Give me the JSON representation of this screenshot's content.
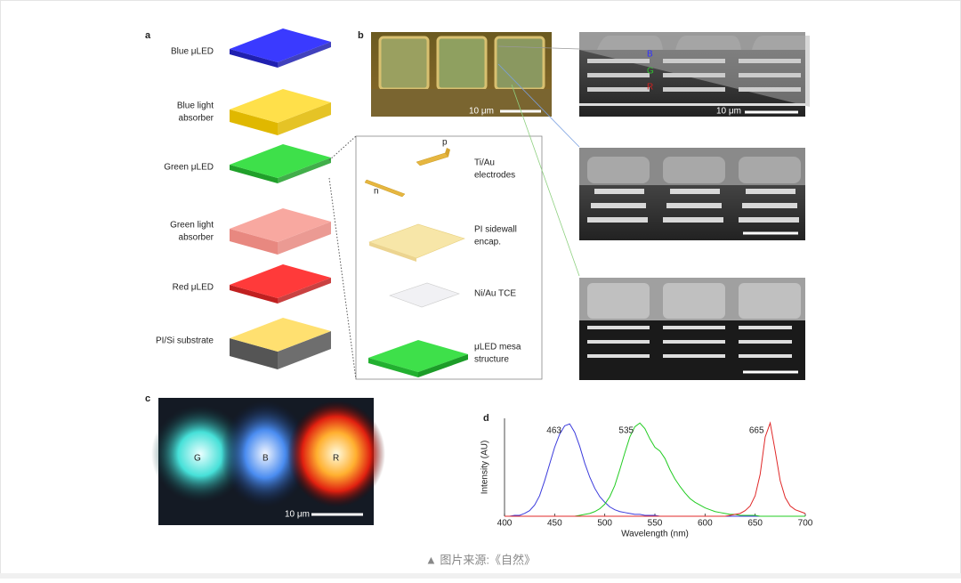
{
  "panel_a": {
    "label": "a",
    "layers": [
      {
        "lines": [
          "Blue μLED"
        ]
      },
      {
        "lines": [
          "Blue light",
          "absorber"
        ]
      },
      {
        "lines": [
          "Green μLED"
        ]
      },
      {
        "lines": [
          "Green light",
          "absorber"
        ]
      },
      {
        "lines": [
          "Red μLED"
        ]
      },
      {
        "lines": [
          "PI/Si substrate"
        ]
      }
    ],
    "inset": {
      "p": "p",
      "n": "n",
      "items": [
        {
          "lines": [
            "Ti/Au",
            "electrodes"
          ]
        },
        {
          "lines": [
            "PI sidewall",
            "encap."
          ]
        },
        {
          "lines": [
            "Ni/Au TCE"
          ]
        },
        {
          "lines": [
            "μLED mesa",
            "structure"
          ]
        }
      ]
    }
  },
  "panel_b": {
    "label": "b",
    "scale_labels": [
      "10 μm",
      "10 μm"
    ],
    "layer_labels": [
      "B",
      "G",
      "R"
    ]
  },
  "panel_c": {
    "label": "c",
    "pixel_labels": [
      "G",
      "B",
      "R"
    ],
    "scale_label": "10 μm"
  },
  "chart_data": {
    "type": "line",
    "label": "d",
    "x_label": "Wavelength (nm)",
    "y_label": "Intensity (AU)",
    "xlim": [
      400,
      700
    ],
    "xticks": [
      400,
      450,
      500,
      550,
      600,
      650,
      700
    ],
    "ylim": [
      0,
      1.05
    ],
    "x": [
      400,
      405,
      410,
      415,
      420,
      425,
      430,
      435,
      440,
      445,
      450,
      455,
      460,
      465,
      470,
      475,
      480,
      485,
      490,
      495,
      500,
      505,
      510,
      515,
      520,
      525,
      530,
      535,
      540,
      545,
      550,
      555,
      560,
      565,
      570,
      575,
      580,
      585,
      590,
      595,
      600,
      605,
      610,
      615,
      620,
      625,
      630,
      635,
      640,
      645,
      650,
      655,
      660,
      665,
      670,
      675,
      680,
      685,
      690,
      695,
      700
    ],
    "series": [
      {
        "color": "#3b3bdc",
        "values": [
          0,
          0,
          0.01,
          0.01,
          0.03,
          0.06,
          0.12,
          0.22,
          0.38,
          0.56,
          0.74,
          0.88,
          0.97,
          0.99,
          0.9,
          0.75,
          0.57,
          0.42,
          0.3,
          0.21,
          0.15,
          0.1,
          0.07,
          0.05,
          0.04,
          0.03,
          0.02,
          0.02,
          0.01,
          0.01,
          0.01,
          0,
          0,
          0,
          0,
          0,
          0,
          0,
          0,
          0,
          0,
          0,
          0,
          0,
          0,
          0,
          0,
          0,
          0,
          0,
          0,
          0,
          0,
          0,
          0,
          0,
          0,
          0,
          0,
          0,
          0
        ]
      },
      {
        "color": "#22cc22",
        "values": [
          0,
          0,
          0,
          0,
          0,
          0,
          0,
          0,
          0,
          0,
          0,
          0,
          0,
          0,
          0,
          0.01,
          0.02,
          0.03,
          0.05,
          0.08,
          0.13,
          0.21,
          0.33,
          0.5,
          0.68,
          0.85,
          0.96,
          1.0,
          0.94,
          0.83,
          0.74,
          0.7,
          0.62,
          0.5,
          0.4,
          0.32,
          0.25,
          0.19,
          0.15,
          0.12,
          0.09,
          0.07,
          0.05,
          0.04,
          0.03,
          0.02,
          0.02,
          0.01,
          0.01,
          0.01,
          0.01,
          0,
          0,
          0,
          0,
          0,
          0,
          0,
          0,
          0,
          0
        ]
      },
      {
        "color": "#e02828",
        "values": [
          0,
          0,
          0,
          0,
          0,
          0,
          0,
          0,
          0,
          0,
          0,
          0,
          0,
          0,
          0,
          0,
          0,
          0,
          0,
          0,
          0,
          0,
          0,
          0,
          0,
          0,
          0,
          0,
          0,
          0,
          0,
          0,
          0,
          0,
          0,
          0,
          0,
          0,
          0,
          0,
          0,
          0,
          0,
          0,
          0,
          0.01,
          0.02,
          0.03,
          0.06,
          0.11,
          0.22,
          0.45,
          0.85,
          1.0,
          0.7,
          0.38,
          0.2,
          0.11,
          0.07,
          0.05,
          0.03
        ]
      }
    ],
    "annotations": [
      {
        "text": "463",
        "x": 463
      },
      {
        "text": "535",
        "x": 535
      },
      {
        "text": "665",
        "x": 665
      }
    ]
  },
  "caption": "▲  图片来源:《自然》"
}
